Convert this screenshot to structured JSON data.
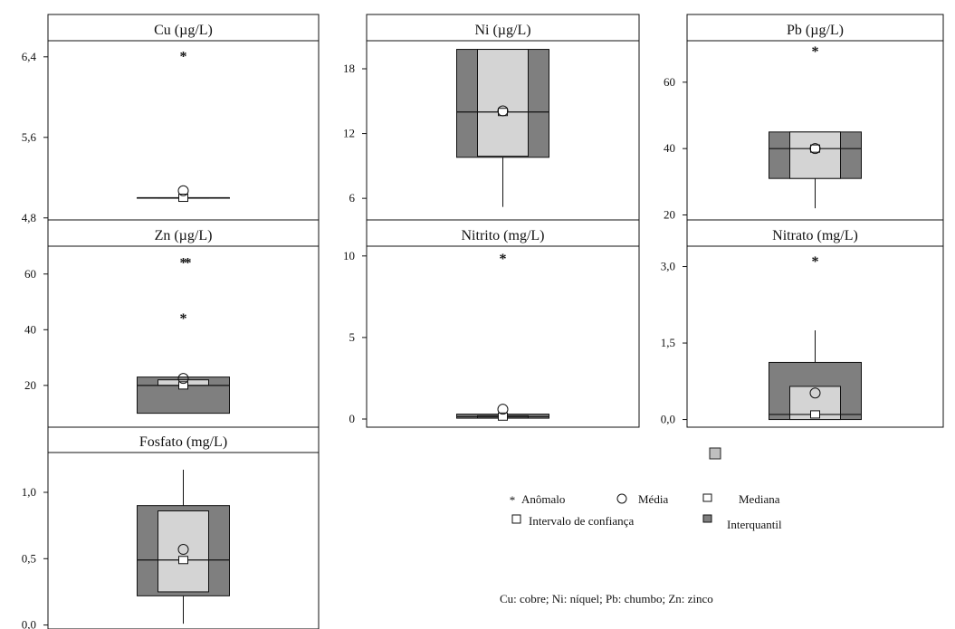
{
  "colors": {
    "interquartile": "#7f7f7f",
    "confidence": "#d4d4d4",
    "frame": "#111111",
    "background": "#ffffff"
  },
  "chart_data": [
    {
      "type": "boxplot",
      "title": "Cu (µg/L)",
      "ylim": [
        4.78,
        6.56
      ],
      "yticks": [
        "4,8",
        "5,6",
        "6,4"
      ],
      "ytick_values": [
        4.8,
        5.6,
        6.4
      ],
      "q1": 5.0,
      "median": 5.0,
      "q3": 5.0,
      "whisker_low": 5.0,
      "whisker_high": 5.0,
      "ci_low": 5.0,
      "ci_high": 5.0,
      "mean": 5.07,
      "outliers": [
        6.43
      ]
    },
    {
      "type": "boxplot",
      "title": "Ni (µg/L)",
      "ylim": [
        4.0,
        20.6
      ],
      "yticks": [
        "6",
        "12",
        "18"
      ],
      "ytick_values": [
        6,
        12,
        18
      ],
      "q1": 9.8,
      "median": 14.0,
      "q3": 19.8,
      "whisker_low": 5.2,
      "whisker_high": 19.8,
      "ci_low": 9.9,
      "ci_high": 19.8,
      "mean": 14.1,
      "outliers": []
    },
    {
      "type": "boxplot",
      "title": "Pb (µg/L)",
      "ylim": [
        18.5,
        72.5
      ],
      "yticks": [
        "20",
        "40",
        "60"
      ],
      "ytick_values": [
        20,
        40,
        60
      ],
      "q1": 31.0,
      "median": 40.0,
      "q3": 45.0,
      "whisker_low": 22.0,
      "whisker_high": 45.0,
      "ci_low": 31.0,
      "ci_high": 45.0,
      "mean": 40.0,
      "outliers": [
        70.0
      ]
    },
    {
      "type": "boxplot",
      "title": "Zn (µg/L)",
      "ylim": [
        5.0,
        70.0
      ],
      "yticks": [
        "20",
        "40",
        "60"
      ],
      "ytick_values": [
        20,
        40,
        60
      ],
      "q1": 10.0,
      "median": 20.0,
      "q3": 23.0,
      "whisker_low": 10.0,
      "whisker_high": 23.0,
      "ci_low": 20.0,
      "ci_high": 22.0,
      "mean": 22.5,
      "outliers": [
        45.0,
        65.0,
        65.0
      ]
    },
    {
      "type": "boxplot",
      "title": "Nitrito (mg/L)",
      "ylim": [
        -0.5,
        10.6
      ],
      "yticks": [
        "0",
        "5",
        "10"
      ],
      "ytick_values": [
        0,
        5,
        10
      ],
      "q1": 0.05,
      "median": 0.15,
      "q3": 0.3,
      "whisker_low": 0.05,
      "whisker_high": 0.3,
      "ci_low": 0.07,
      "ci_high": 0.2,
      "mean": 0.6,
      "outliers": [
        10.0
      ]
    },
    {
      "type": "boxplot",
      "title": "Nitrato (mg/L)",
      "ylim": [
        -0.15,
        3.4
      ],
      "yticks": [
        "0,0",
        "1,5",
        "3,0"
      ],
      "ytick_values": [
        0.0,
        1.5,
        3.0
      ],
      "q1": 0.0,
      "median": 0.1,
      "q3": 1.12,
      "whisker_low": 0.0,
      "whisker_high": 1.75,
      "ci_low": 0.0,
      "ci_high": 0.65,
      "mean": 0.52,
      "outliers": [
        3.15
      ]
    },
    {
      "type": "boxplot",
      "title": "Fosfato (mg/L)",
      "ylim": [
        -0.03,
        1.3
      ],
      "yticks": [
        "0,0",
        "0,5",
        "1,0"
      ],
      "ytick_values": [
        0.0,
        0.5,
        1.0
      ],
      "q1": 0.22,
      "median": 0.49,
      "q3": 0.9,
      "whisker_low": 0.01,
      "whisker_high": 1.17,
      "ci_low": 0.25,
      "ci_high": 0.86,
      "mean": 0.57,
      "outliers": []
    }
  ],
  "legend": {
    "outlier": "Anômalo",
    "mean": "Média",
    "median": "Mediana",
    "ci": "Intervalo de confiança",
    "iqr": "Interquantil"
  },
  "footnote": "Cu: cobre; Ni: níquel; Pb: chumbo; Zn: zinco"
}
